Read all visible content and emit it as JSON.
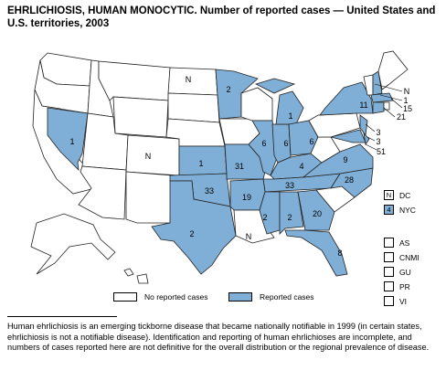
{
  "title_bold": "EHRLICHIOSIS, HUMAN MONOCYTIC.",
  "title_rest": "Number of reported cases — United States and U.S. territories, 2003",
  "colors": {
    "reported": "#7fafd6",
    "none": "#ffffff",
    "stroke": "#222222"
  },
  "states": {
    "NV": "1",
    "MN": "2",
    "ND": "N",
    "NM": "N",
    "MI": "1",
    "KS": "1",
    "MO": "31",
    "IL": "6",
    "IN": "6",
    "OH": "6",
    "OK": "33",
    "AR": "19",
    "TX": "2",
    "LA": "N",
    "KY": "4",
    "TN": "33",
    "NC": "28",
    "VA": "9",
    "MS": "2",
    "AL": "2",
    "GA": "20",
    "FL": "8",
    "NY": "11"
  },
  "northeast_callouts": [
    "N",
    "1",
    "15",
    "21",
    "3",
    "3",
    "51"
  ],
  "territories": [
    {
      "code": "DC",
      "value": "N",
      "reported": false
    },
    {
      "code": "NYC",
      "value": "4",
      "reported": true
    },
    {
      "code": "AS",
      "value": "",
      "reported": false
    },
    {
      "code": "CNMI",
      "value": "",
      "reported": false
    },
    {
      "code": "GU",
      "value": "",
      "reported": false
    },
    {
      "code": "PR",
      "value": "",
      "reported": false
    },
    {
      "code": "VI",
      "value": "",
      "reported": false
    }
  ],
  "legend": {
    "none": "No reported cases",
    "reported": "Reported cases"
  },
  "footnote": "Human ehrlichiosis is an emerging tickborne disease that became nationally notifiable in 1999 (in certain states, ehrlichiosis is not a notifiable disease). Identification and reporting of human ehrlichioses are incomplete, and numbers of cases reported here are not definitive for the overall distribution or the regional prevalence of disease."
}
